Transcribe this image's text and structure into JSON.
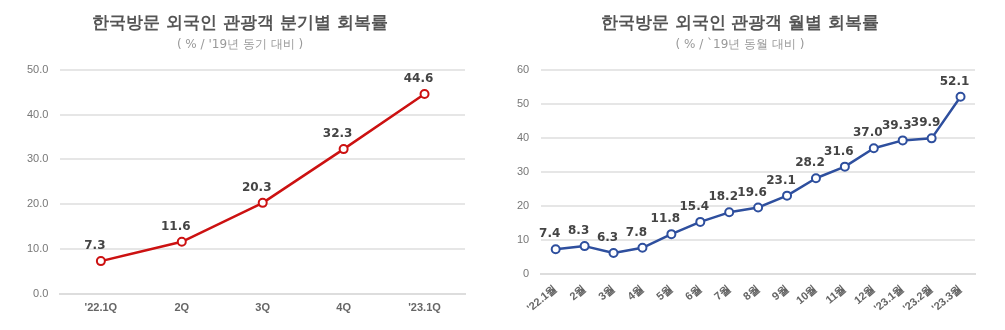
{
  "chart_data": [
    {
      "type": "line",
      "title": "한국방문 외국인 관광객 분기별 회복률",
      "subtitle": "( % / '19년 동기 대비 )",
      "categories": [
        "'22.1Q",
        "2Q",
        "3Q",
        "4Q",
        "'23.1Q"
      ],
      "series": [
        {
          "color": "#cc1111",
          "values": [
            7.3,
            11.6,
            20.3,
            32.3,
            44.6
          ],
          "value_labels": [
            "7.3",
            "11.6",
            "20.3",
            "32.3",
            "44.6"
          ]
        }
      ],
      "ylim": [
        0,
        50
      ],
      "yticks": [
        {
          "value": 0,
          "label": "0.0"
        },
        {
          "value": 10,
          "label": "10.0"
        },
        {
          "value": 20,
          "label": "20.0"
        },
        {
          "value": 30,
          "label": "30.0"
        },
        {
          "value": 40,
          "label": "40.0"
        },
        {
          "value": 50,
          "label": "50.0"
        }
      ],
      "grid": "y",
      "marker": "circle",
      "line_style": "solid"
    },
    {
      "type": "line",
      "title": "한국방문 외국인 관광객 월별 회복률",
      "subtitle": "( % / `19년 동월 대비 )",
      "categories": [
        "'22.1월",
        "2월",
        "3월",
        "4월",
        "5월",
        "6월",
        "7월",
        "8월",
        "9월",
        "10월",
        "11월",
        "12월",
        "'23.1월",
        "'23.2월",
        "'23.3월"
      ],
      "series": [
        {
          "color": "#2e4f9e",
          "values": [
            7.4,
            8.3,
            6.3,
            7.8,
            11.8,
            15.4,
            18.2,
            19.6,
            23.1,
            28.2,
            31.6,
            37.0,
            39.3,
            39.9,
            52.1
          ],
          "value_labels": [
            "7.4",
            "8.3",
            "6.3",
            "7.8",
            "11.8",
            "15.4",
            "18.2",
            "19.6",
            "23.1",
            "28.2",
            "31.6",
            "37.0",
            "39.3",
            "39.9",
            "52.1"
          ]
        }
      ],
      "ylim": [
        0,
        60
      ],
      "yticks": [
        0,
        10,
        20,
        30,
        40,
        50,
        60
      ],
      "grid": "y",
      "marker": "circle",
      "line_style": "solid"
    }
  ]
}
